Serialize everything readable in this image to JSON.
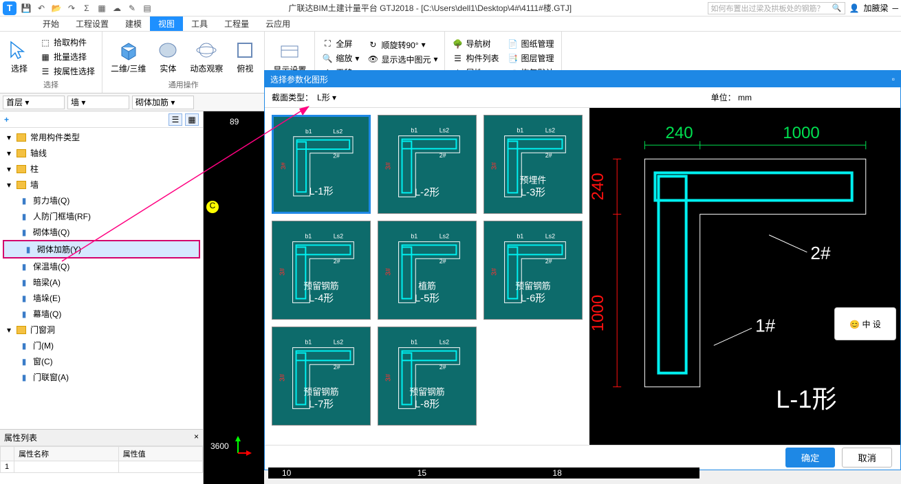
{
  "app": {
    "title": "广联达BIM土建计量平台 GTJ2018 - [C:\\Users\\dell1\\Desktop\\4#\\4111#楼.GTJ]",
    "search_placeholder": "如何布置出过梁及拱板处的钢筋？",
    "user_name": "加腋梁"
  },
  "menu": {
    "items": [
      "开始",
      "工程设置",
      "建模",
      "视图",
      "工具",
      "工程量",
      "云应用"
    ],
    "active_index": 3
  },
  "ribbon": {
    "group1": {
      "label": "选择",
      "select_btn": "选择",
      "pick": "拾取构件",
      "batch": "批量选择",
      "byprop": "按属性选择"
    },
    "group2": {
      "label": "通用操作",
      "b1": "二维/三维",
      "b2": "实体",
      "b3": "动态观察",
      "b4": "俯视"
    },
    "group3": {
      "b1": "显示设置"
    },
    "group4": {
      "full": "全屏",
      "zoom": "缩放",
      "pan": "平移",
      "rotate": "顺旋转90°",
      "showsel": "显示选中图元"
    },
    "group5": {
      "nav": "导航树",
      "complist": "构件列表",
      "props": "属性",
      "drawing": "图纸管理",
      "layer": "图层管理",
      "restore": "恢复默认"
    }
  },
  "selectors": {
    "floor": "首层",
    "type": "墙",
    "component": "砌体加筋"
  },
  "tree": {
    "header_plus": "+",
    "items": [
      {
        "label": "常用构件类型",
        "level": 1,
        "folder": true
      },
      {
        "label": "轴线",
        "level": 1,
        "folder": true
      },
      {
        "label": "柱",
        "level": 1,
        "folder": true
      },
      {
        "label": "墙",
        "level": 1,
        "folder": true
      },
      {
        "label": "剪力墙(Q)",
        "level": 2
      },
      {
        "label": "人防门框墙(RF)",
        "level": 2
      },
      {
        "label": "砌体墙(Q)",
        "level": 2
      },
      {
        "label": "砌体加筋(Y)",
        "level": 2,
        "selected": true
      },
      {
        "label": "保温墙(Q)",
        "level": 2
      },
      {
        "label": "暗梁(A)",
        "level": 2
      },
      {
        "label": "墙垛(E)",
        "level": 2
      },
      {
        "label": "幕墙(Q)",
        "level": 2
      },
      {
        "label": "门窗洞",
        "level": 1,
        "folder": true
      },
      {
        "label": "门(M)",
        "level": 2
      },
      {
        "label": "窗(C)",
        "level": 2
      },
      {
        "label": "门联窗(A)",
        "level": 2
      }
    ]
  },
  "props": {
    "title": "属性列表",
    "col1": "属性名称",
    "col2": "属性值",
    "row1": "1"
  },
  "dialog": {
    "title": "选择参数化图形",
    "section_label": "截面类型：",
    "section_value": "L形",
    "unit_label": "单位：  mm",
    "thumbs": [
      {
        "label": "L-1形",
        "selected": true
      },
      {
        "label": "L-2形"
      },
      {
        "label": "L-3形",
        "sub": "预埋件"
      },
      {
        "label": "L-4形",
        "sub": "预留钢筋"
      },
      {
        "label": "L-5形",
        "sub": "植筋"
      },
      {
        "label": "L-6形",
        "sub": "预留钢筋"
      },
      {
        "label": "L-7形",
        "sub": "预留钢筋"
      },
      {
        "label": "L-8形",
        "sub": "预留钢筋"
      }
    ],
    "preview": {
      "dim1": "240",
      "dim2": "1000",
      "dim3": "240",
      "dim4": "1000",
      "label1": "1#",
      "label2": "2#",
      "shape_label": "L-1形",
      "colors": {
        "bg": "#000000",
        "shape": "#00f0f0",
        "dim_h": "#00e050",
        "dim_v": "#ff1010",
        "text": "#ffffff"
      }
    },
    "ok": "确定",
    "cancel": "取消"
  },
  "canvas": {
    "labels": [
      "89",
      "3600",
      "10",
      "15",
      "18"
    ],
    "grid_c": "C"
  }
}
